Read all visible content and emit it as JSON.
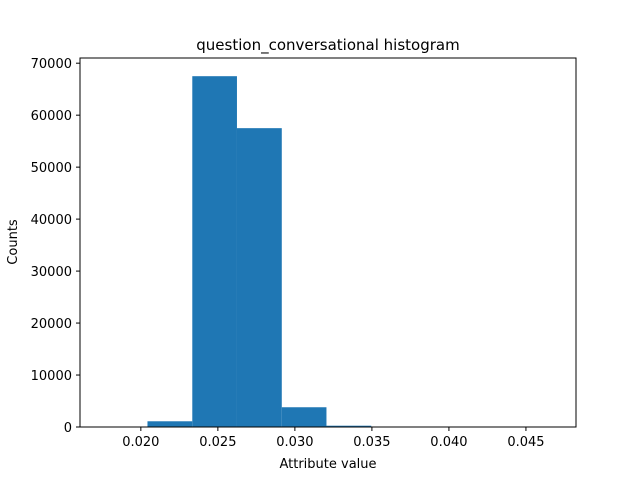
{
  "chart_data": {
    "type": "bar",
    "title": "question_conversational histogram",
    "xlabel": "Attribute value",
    "ylabel": "Counts",
    "xlim": [
      0.01605,
      0.04825
    ],
    "ylim": [
      0,
      71000
    ],
    "xticks": [
      0.02,
      0.025,
      0.03,
      0.035,
      0.04,
      0.045
    ],
    "xtick_labels": [
      "0.020",
      "0.025",
      "0.030",
      "0.035",
      "0.040",
      "0.045"
    ],
    "yticks": [
      0,
      10000,
      20000,
      30000,
      40000,
      50000,
      60000,
      70000
    ],
    "ytick_labels": [
      "0",
      "10000",
      "20000",
      "30000",
      "40000",
      "50000",
      "60000",
      "70000"
    ],
    "bar_color": "#1f77b4",
    "grid": false,
    "legend": "none",
    "bins": [
      {
        "x0": 0.01753,
        "x1": 0.02043,
        "count": 0
      },
      {
        "x0": 0.02043,
        "x1": 0.02334,
        "count": 1100
      },
      {
        "x0": 0.02334,
        "x1": 0.02624,
        "count": 67500
      },
      {
        "x0": 0.02624,
        "x1": 0.02915,
        "count": 57500
      },
      {
        "x0": 0.02915,
        "x1": 0.03205,
        "count": 3800
      },
      {
        "x0": 0.03205,
        "x1": 0.03496,
        "count": 250
      },
      {
        "x0": 0.03496,
        "x1": 0.03786,
        "count": 30
      },
      {
        "x0": 0.03786,
        "x1": 0.04077,
        "count": 0
      },
      {
        "x0": 0.04077,
        "x1": 0.04367,
        "count": 0
      },
      {
        "x0": 0.04367,
        "x1": 0.04658,
        "count": 0
      }
    ]
  }
}
